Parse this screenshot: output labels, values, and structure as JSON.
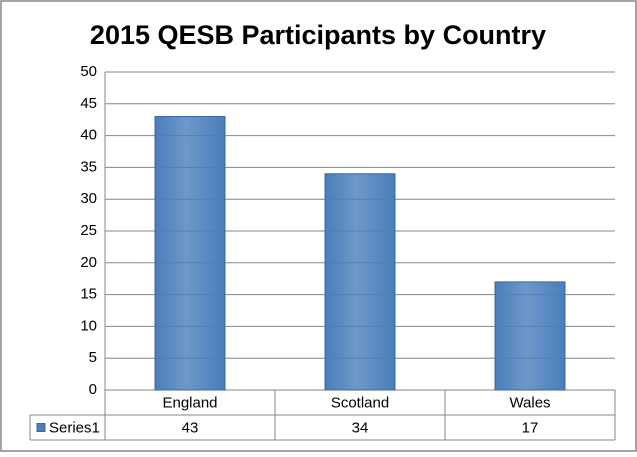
{
  "chart_data": {
    "type": "bar",
    "title": "2015 QESB Participants by Country",
    "categories": [
      "England",
      "Scotland",
      "Wales"
    ],
    "series": [
      {
        "name": "Series1",
        "color": "#4a7ebb",
        "values": [
          43,
          34,
          17
        ]
      }
    ],
    "ylim": [
      0,
      50
    ],
    "yticks": [
      0,
      5,
      10,
      15,
      20,
      25,
      30,
      35,
      40,
      45,
      50
    ],
    "grid": true,
    "data_table": true
  }
}
